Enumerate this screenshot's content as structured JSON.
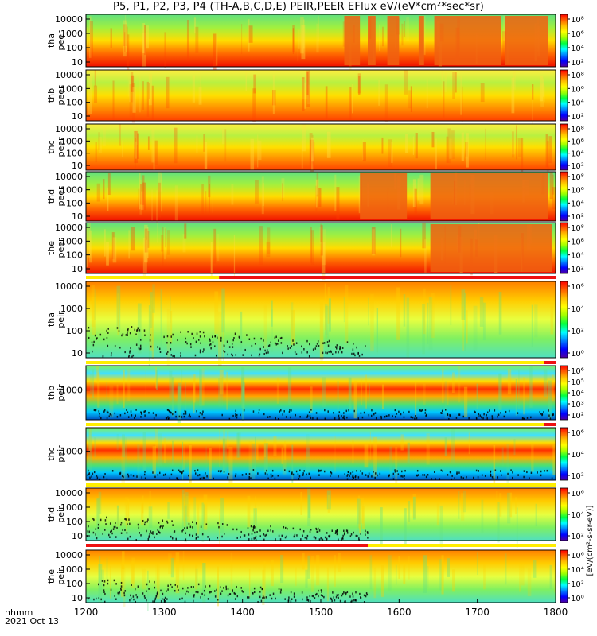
{
  "title": "P5, P1, P2, P3, P4 (TH-A,B,C,D,E) PEIR,PEER EFlux eV/(eV*cm²*sec*sr)",
  "footer": {
    "line1": "hhmm",
    "line2": "2021 Oct 13"
  },
  "colorbar_unit_label": "[eV/(cm²-s-sr-eV)]",
  "chart_data": {
    "type": "heatmap",
    "x": {
      "range": [
        1200,
        1800
      ],
      "ticks": [
        1200,
        1300,
        1400,
        1500,
        1600,
        1700,
        1800
      ],
      "tick_labels": [
        "1200",
        "1300",
        "1400",
        "1500",
        "1600",
        "1700",
        "1800"
      ],
      "label": "hhmm",
      "date": "2021 Oct 13"
    },
    "panels": [
      {
        "probe": "tha",
        "species": "peer",
        "ylabel": [
          "tha",
          "peer"
        ],
        "yscale": "log",
        "yticks": [
          "10",
          "100",
          "1000",
          "10000"
        ],
        "ytick_values": [
          10,
          100,
          1000,
          10000
        ],
        "colorbar_ticks": [
          "10⁸",
          "10⁶",
          "10⁴",
          "10²"
        ],
        "colorbar_values": [
          100000000,
          1000000,
          10000,
          100
        ]
      },
      {
        "probe": "thb",
        "species": "peer",
        "ylabel": [
          "thb",
          "peer"
        ],
        "yscale": "log",
        "yticks": [
          "10",
          "100",
          "1000",
          "10000"
        ],
        "ytick_values": [
          10,
          100,
          1000,
          10000
        ],
        "colorbar_ticks": [
          "10⁸",
          "10⁶",
          "10⁴",
          "10²"
        ],
        "colorbar_values": [
          100000000,
          1000000,
          10000,
          100
        ]
      },
      {
        "probe": "thc",
        "species": "peer",
        "ylabel": [
          "thc",
          "peer"
        ],
        "yscale": "log",
        "yticks": [
          "10",
          "100",
          "1000",
          "10000"
        ],
        "ytick_values": [
          10,
          100,
          1000,
          10000
        ],
        "colorbar_ticks": [
          "10⁸",
          "10⁶",
          "10⁴",
          "10²"
        ],
        "colorbar_values": [
          100000000,
          1000000,
          10000,
          100
        ]
      },
      {
        "probe": "thd",
        "species": "peer",
        "ylabel": [
          "thd",
          "peer"
        ],
        "yscale": "log",
        "yticks": [
          "10",
          "100",
          "1000",
          "10000"
        ],
        "ytick_values": [
          10,
          100,
          1000,
          10000
        ],
        "colorbar_ticks": [
          "10⁸",
          "10⁶",
          "10⁴",
          "10²"
        ],
        "colorbar_values": [
          100000000,
          1000000,
          10000,
          100
        ]
      },
      {
        "probe": "the",
        "species": "peer",
        "ylabel": [
          "the",
          "peer"
        ],
        "yscale": "log",
        "yticks": [
          "10",
          "100",
          "1000",
          "10000"
        ],
        "ytick_values": [
          10,
          100,
          1000,
          10000
        ],
        "colorbar_ticks": [
          "10⁸",
          "10⁶",
          "10⁴",
          "10²"
        ],
        "colorbar_values": [
          100000000,
          1000000,
          10000,
          100
        ]
      },
      {
        "probe": "tha",
        "species": "peir",
        "ylabel": [
          "tha",
          "peir"
        ],
        "yscale": "log",
        "yticks": [
          "10",
          "100",
          "1000",
          "10000"
        ],
        "ytick_values": [
          10,
          100,
          1000,
          10000
        ],
        "colorbar_ticks": [
          "10⁶",
          "10⁴",
          "10²",
          "10⁰"
        ],
        "colorbar_values": [
          1000000,
          10000,
          100,
          1
        ]
      },
      {
        "probe": "thb",
        "species": "peir",
        "ylabel": [
          "thb",
          "peir"
        ],
        "yscale": "log",
        "yticks": [
          "1000"
        ],
        "ytick_values": [
          1000
        ],
        "colorbar_ticks": [
          "10⁶",
          "10⁵",
          "10⁴",
          "10³",
          "10²"
        ],
        "colorbar_values": [
          1000000,
          100000,
          10000,
          1000,
          100
        ]
      },
      {
        "probe": "thc",
        "species": "peir",
        "ylabel": [
          "thc",
          "peir"
        ],
        "yscale": "log",
        "yticks": [
          "1000"
        ],
        "ytick_values": [
          1000
        ],
        "colorbar_ticks": [
          "10⁶",
          "10⁴",
          "10²"
        ],
        "colorbar_values": [
          1000000,
          10000,
          100
        ]
      },
      {
        "probe": "thd",
        "species": "peir",
        "ylabel": [
          "thd",
          "peir"
        ],
        "yscale": "log",
        "yticks": [
          "10",
          "100",
          "1000",
          "10000"
        ],
        "ytick_values": [
          10,
          100,
          1000,
          10000
        ],
        "colorbar_ticks": [
          "10⁶",
          "10⁴",
          "10²"
        ],
        "colorbar_values": [
          1000000,
          10000,
          100
        ]
      },
      {
        "probe": "the",
        "species": "peir",
        "ylabel": [
          "the",
          "peir"
        ],
        "yscale": "log",
        "yticks": [
          "10",
          "100",
          "1000",
          "10000"
        ],
        "ytick_values": [
          10,
          100,
          1000,
          10000
        ],
        "colorbar_ticks": [
          "10⁶",
          "10⁴",
          "10²",
          "10⁰"
        ],
        "colorbar_values": [
          1000000,
          10000,
          100,
          1
        ]
      }
    ],
    "colormap": "rainbow (purple-blue-cyan-green-yellow-orange-red)",
    "colorbar_colors": [
      "#ff0000",
      "#ff6000",
      "#ffc000",
      "#ffff00",
      "#a0ff00",
      "#00ff40",
      "#00ffff",
      "#0080ff",
      "#0000ff",
      "#5000a0"
    ],
    "mode_bar_colors": {
      "high": "#ee1111",
      "low": "#ffee00"
    }
  }
}
